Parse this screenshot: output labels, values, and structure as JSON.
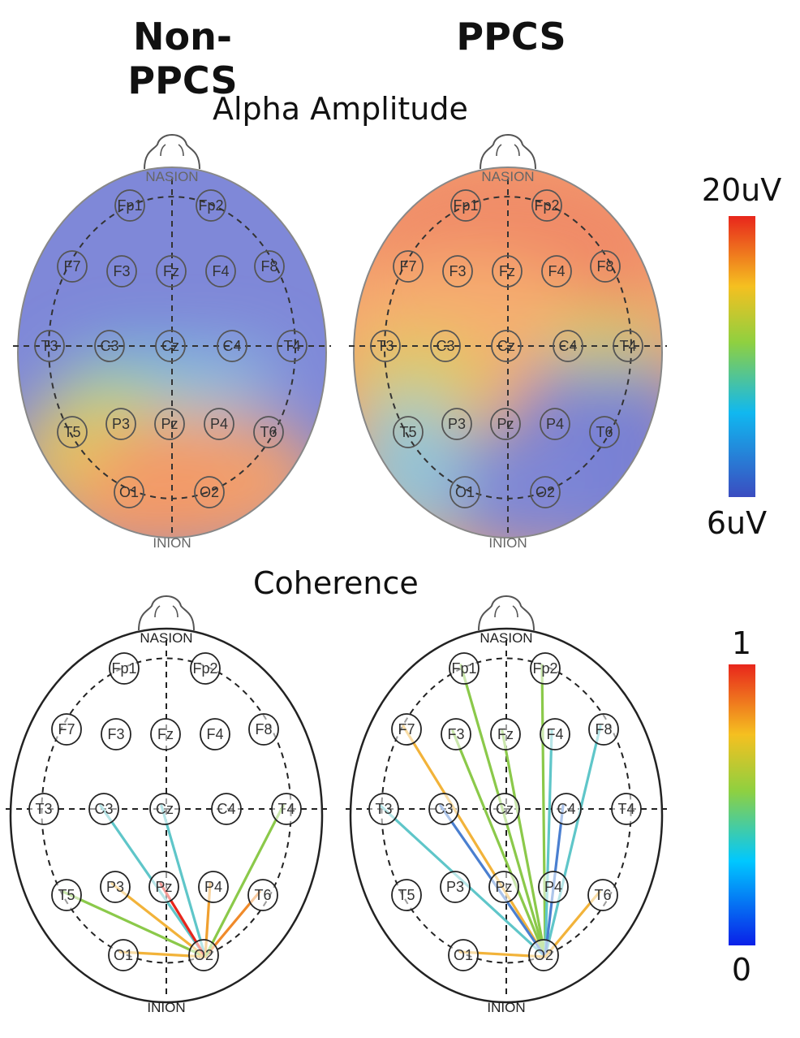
{
  "columns": {
    "left": "Non-PPCS",
    "right": "PPCS"
  },
  "sections": {
    "alpha": "Alpha Amplitude",
    "coherence": "Coherence"
  },
  "landmarks": {
    "top": "NASION",
    "bottom": "INION"
  },
  "scales": {
    "alpha": {
      "max_label": "20uV",
      "min_label": "6uV"
    },
    "coherence": {
      "max_label": "1",
      "min_label": "0"
    }
  },
  "electrodes": [
    "Fp1",
    "Fp2",
    "F7",
    "F3",
    "Fz",
    "F4",
    "F8",
    "T3",
    "C3",
    "Cz",
    "C4",
    "T4",
    "T5",
    "P3",
    "Pz",
    "P4",
    "T6",
    "O1",
    "O2"
  ],
  "colors": {
    "low": "#3b4cc0",
    "mid_low": "#00c0ff",
    "mid": "#7fd04a",
    "mid_high": "#f5c020",
    "high": "#e8261c",
    "alpha_blob_high": "#f08060",
    "alpha_blob_low": "#7d86d6"
  },
  "alpha_amplitude": {
    "non_ppcs": {
      "high_regions": [
        "O1",
        "O2",
        "Pz",
        "T5"
      ],
      "low_regions": [
        "Fp1",
        "Fp2",
        "F7",
        "F8",
        "T4"
      ]
    },
    "ppcs": {
      "high_regions": [
        "Fp1",
        "Fp2",
        "F3",
        "Fz",
        "F4",
        "F7",
        "F8"
      ],
      "low_regions": [
        "O2",
        "P4",
        "T6",
        "T5"
      ]
    }
  },
  "coherence": {
    "non_ppcs": [
      {
        "from": "O2",
        "to": "T5",
        "color": "#8bc94a"
      },
      {
        "from": "O2",
        "to": "C3",
        "color": "#5fc6c9"
      },
      {
        "from": "O2",
        "to": "Cz",
        "color": "#5fc6c9"
      },
      {
        "from": "O2",
        "to": "P3",
        "color": "#f2b33a"
      },
      {
        "from": "O2",
        "to": "Pz",
        "color": "#e8261c"
      },
      {
        "from": "O2",
        "to": "P4",
        "color": "#f0a030"
      },
      {
        "from": "O2",
        "to": "T6",
        "color": "#f08a2a"
      },
      {
        "from": "O2",
        "to": "T4",
        "color": "#8bc94a"
      },
      {
        "from": "O2",
        "to": "O1",
        "color": "#f2b33a"
      }
    ],
    "ppcs": [
      {
        "from": "O2",
        "to": "Fp1",
        "color": "#8bc94a"
      },
      {
        "from": "O2",
        "to": "Fp2",
        "color": "#8bc94a"
      },
      {
        "from": "O2",
        "to": "F7",
        "color": "#f2b33a"
      },
      {
        "from": "O2",
        "to": "F3",
        "color": "#8bc94a"
      },
      {
        "from": "O2",
        "to": "Fz",
        "color": "#8bc94a"
      },
      {
        "from": "O2",
        "to": "F4",
        "color": "#5fc6c9"
      },
      {
        "from": "O2",
        "to": "F8",
        "color": "#5fc6c9"
      },
      {
        "from": "O2",
        "to": "T3",
        "color": "#5fc6c9"
      },
      {
        "from": "O2",
        "to": "C3",
        "color": "#4a7fd0"
      },
      {
        "from": "O2",
        "to": "C4",
        "color": "#4a7fd0"
      },
      {
        "from": "O2",
        "to": "T6",
        "color": "#f2b33a"
      },
      {
        "from": "O2",
        "to": "O1",
        "color": "#f2b33a"
      }
    ]
  }
}
